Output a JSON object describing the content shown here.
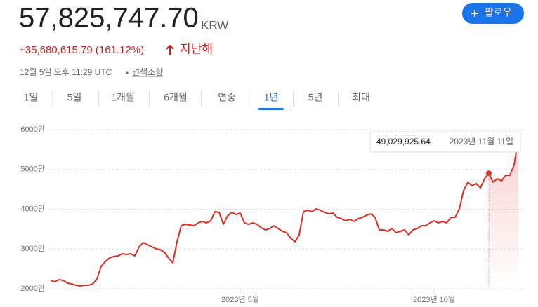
{
  "header": {
    "price": "57,825,747.70",
    "currency": "KRW",
    "follow": "팔로우",
    "change": "+35,680,615.79 (161.12%)",
    "period": "지난해",
    "timestamp": "12월 5일 오후 11:29 UTC",
    "disclaimer": "면책조항"
  },
  "tabs": [
    "1일",
    "5일",
    "1개월",
    "6개월",
    "연중",
    "1년",
    "5년",
    "최대"
  ],
  "selected_tab": 5,
  "chart_data": {
    "type": "line",
    "color": "#d93025",
    "grid": true,
    "ylim": [
      2000,
      6000
    ],
    "yticks": [
      {
        "value": 2000,
        "label": "2000만"
      },
      {
        "value": 3000,
        "label": "3000만"
      },
      {
        "value": 4000,
        "label": "4000만"
      },
      {
        "value": 5000,
        "label": "5000만"
      },
      {
        "value": 6000,
        "label": "6000만"
      }
    ],
    "categories": [
      null,
      null,
      null,
      null,
      null,
      null,
      null,
      null,
      null,
      null,
      null,
      null,
      null,
      null,
      null,
      null,
      null,
      null,
      null,
      null,
      null,
      null,
      null,
      null,
      null,
      null,
      null,
      null,
      null,
      null,
      null,
      null,
      null,
      null,
      null,
      null,
      null,
      null,
      null,
      null,
      null,
      null,
      null,
      null,
      null,
      "2023년 5월",
      null,
      null,
      null,
      null,
      null,
      null,
      null,
      null,
      null,
      null,
      null,
      null,
      null,
      null,
      null,
      null,
      null,
      null,
      null,
      null,
      null,
      null,
      null,
      null,
      null,
      null,
      null,
      null,
      null,
      null,
      null,
      null,
      null,
      null,
      null,
      null,
      null,
      null,
      null,
      null,
      null,
      null,
      null,
      null,
      null,
      "2023년 10월",
      null,
      null,
      null,
      null,
      null,
      null,
      null,
      null,
      null,
      null,
      null,
      null,
      null,
      null,
      null,
      null,
      null,
      null,
      null,
      null
    ],
    "values": [
      2211,
      2176,
      2229,
      2211,
      2141,
      2123,
      2088,
      2070,
      2088,
      2088,
      2123,
      2247,
      2564,
      2687,
      2775,
      2811,
      2828,
      2881,
      2863,
      2881,
      2828,
      3057,
      3163,
      3110,
      3057,
      3004,
      2987,
      2916,
      2775,
      2652,
      3181,
      3586,
      3621,
      3604,
      3586,
      3656,
      3692,
      3656,
      3709,
      3938,
      3921,
      3621,
      3833,
      3921,
      3868,
      3903,
      3656,
      3621,
      3656,
      3621,
      3533,
      3480,
      3515,
      3586,
      3515,
      3445,
      3410,
      3269,
      3181,
      3357,
      3938,
      3974,
      3938,
      4009,
      3974,
      3921,
      3885,
      3903,
      3797,
      3762,
      3709,
      3744,
      3692,
      3762,
      3797,
      3850,
      3885,
      3797,
      3480,
      3480,
      3445,
      3515,
      3410,
      3445,
      3480,
      3357,
      3480,
      3515,
      3586,
      3586,
      3656,
      3709,
      3656,
      3692,
      3656,
      3797,
      3797,
      4009,
      4467,
      4678,
      4590,
      4643,
      4537,
      4767,
      4902.992564,
      4678,
      4767,
      4714,
      4855,
      4855,
      5119,
      5783
    ],
    "value_labels": [
      null,
      null,
      null,
      null,
      null,
      null,
      null,
      null,
      null,
      null,
      null,
      null,
      null,
      null,
      null,
      null,
      null,
      null,
      null,
      null,
      null,
      null,
      null,
      null,
      null,
      null,
      null,
      null,
      null,
      null,
      null,
      null,
      null,
      null,
      null,
      null,
      null,
      null,
      null,
      null,
      null,
      null,
      null,
      null,
      null,
      null,
      null,
      null,
      null,
      null,
      null,
      null,
      null,
      null,
      null,
      null,
      null,
      null,
      null,
      null,
      null,
      null,
      null,
      null,
      null,
      null,
      null,
      null,
      null,
      null,
      null,
      null,
      null,
      null,
      null,
      null,
      null,
      null,
      null,
      null,
      null,
      null,
      null,
      null,
      null,
      null,
      null,
      null,
      null,
      null,
      null,
      null,
      null,
      null,
      null,
      null,
      null,
      null,
      null,
      null,
      null,
      null,
      null,
      null,
      "49,029,925.64",
      null,
      null,
      null,
      null,
      null,
      null,
      null
    ],
    "tooltip_date": "2023년 11월 11일"
  }
}
